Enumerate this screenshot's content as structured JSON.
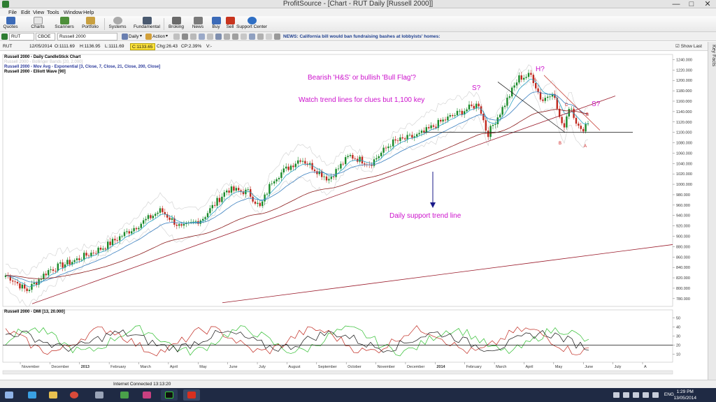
{
  "window": {
    "title": "ProfitSource - [Chart - RUT Daily [Russell 2000]]",
    "min_glyph": "—",
    "max_glyph": "□",
    "close_glyph": "✕"
  },
  "menu": [
    "File",
    "Edit",
    "View",
    "Tools",
    "Window",
    "Help"
  ],
  "toolbar": [
    "Quotes",
    "Charts",
    "Scanners",
    "Portfolio",
    "Systems",
    "Fundamental",
    "Broking",
    "News",
    "Buy",
    "Sell",
    "Support Center"
  ],
  "symbolbar": {
    "symbol": "RUT",
    "exchange": "CBOE",
    "name": "Russell 2000",
    "period": "Daily",
    "action": "Action",
    "news": "NEWS: California bill would ban fundraising bashes at lobbyists' homes:"
  },
  "infobar": {
    "symbol": "RUT",
    "date": "12/05/2014",
    "open": "O:1111.69",
    "high": "H:1136.95",
    "low": "L:1111.69",
    "close": "C:1133.65",
    "change": "Chg:26.43",
    "change_pct": "CP:2.39%",
    "volume": "V:-",
    "show_last": "Show Last"
  },
  "sidebar_label": "Key Facts",
  "chart": {
    "legend": [
      {
        "text": "Russell 2000 - Daily CandleStick Chart",
        "color": "#111111"
      },
      {
        "text": "Russell 2000 - Bollinger Bands [20, 2.000]",
        "color": "#c0c0c0"
      },
      {
        "text": "Russell 2000 - Mov Avg - Exponential [3, Close, 7, Close, 21, Close, 200, Close]",
        "color": "#2d3c9c"
      },
      {
        "text": "Russell 2000 - Elliott Wave [90]",
        "color": "#111111"
      }
    ],
    "dmi_legend": "Russell 2000 - DMI [13, 20.000]",
    "annotations": {
      "line1": "Bearish 'H&S' or bullish 'Bull Flag'?",
      "line2": "Watch trend lines for clues but 1,100 key",
      "support": "Daily support trend line",
      "s_left": "S?",
      "head": "H?",
      "s_right": "S?",
      "wave_a_top": "A",
      "wave_b_low": "B",
      "wave_c": "C",
      "wave_b_right": "B",
      "wave_a_low": "A"
    },
    "price_axis": [
      "1240.000",
      "1220.000",
      "1200.000",
      "1180.000",
      "1160.000",
      "1140.000",
      "1120.000",
      "1100.000",
      "1080.000",
      "1060.000",
      "1040.000",
      "1020.000",
      "1000.000",
      "980.000",
      "960.000",
      "940.000",
      "920.000",
      "900.000",
      "880.000",
      "860.000",
      "840.000",
      "820.000",
      "800.000",
      "780.000"
    ],
    "dmi_axis": [
      "50",
      "40",
      "30",
      "20",
      "10"
    ],
    "months": [
      "November",
      "December",
      "2013",
      "February",
      "March",
      "April",
      "May",
      "June",
      "July",
      "August",
      "September",
      "October",
      "November",
      "December",
      "2014",
      "February",
      "March",
      "April",
      "May",
      "June",
      "July",
      "A"
    ],
    "colors": {
      "up": "#1a8a2a",
      "down": "#c0281e",
      "ema_fast": "#2aa2c4",
      "ema_slow": "#8a1a1a",
      "annotation": "#cc11cc",
      "trend": "#9a1a2a"
    }
  },
  "status": {
    "connection": "Internet Connected 13:13:20"
  },
  "taskbar": {
    "lang": "ENG",
    "time": "1:29 PM",
    "date": "13/05/2014"
  }
}
